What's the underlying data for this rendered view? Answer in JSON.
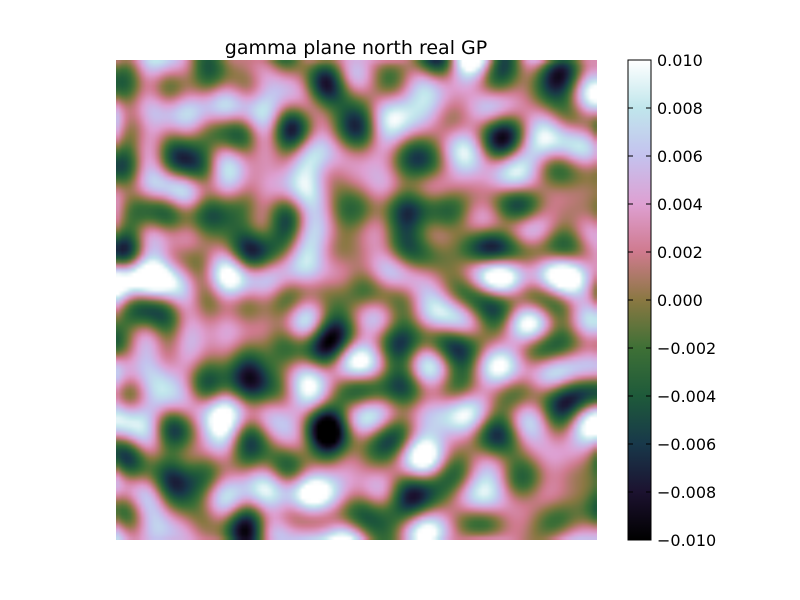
{
  "chart_data": {
    "type": "heatmap",
    "title": "gamma plane north real GP",
    "xlabel": "",
    "ylabel": "",
    "colormap": "cubehelix",
    "colorbar": {
      "vmin": -0.01,
      "vmax": 0.01,
      "tick_labels": [
        "0.010",
        "0.008",
        "0.006",
        "0.004",
        "0.002",
        "0.000",
        "−0.002",
        "−0.004",
        "−0.006",
        "−0.008",
        "−0.010"
      ]
    },
    "axes_visible": false,
    "colors": {
      "-0.010": "#000000",
      "-0.008": "#1c1230",
      "-0.006": "#18384a",
      "-0.004": "#1e5a3a",
      "-0.002": "#3e7036",
      "0.000": "#8a7842",
      "0.002": "#cf7a8e",
      "0.004": "#dea0d2",
      "0.006": "#c4c2ee",
      "0.008": "#c0e6ec",
      "0.010": "#ffffff"
    }
  }
}
